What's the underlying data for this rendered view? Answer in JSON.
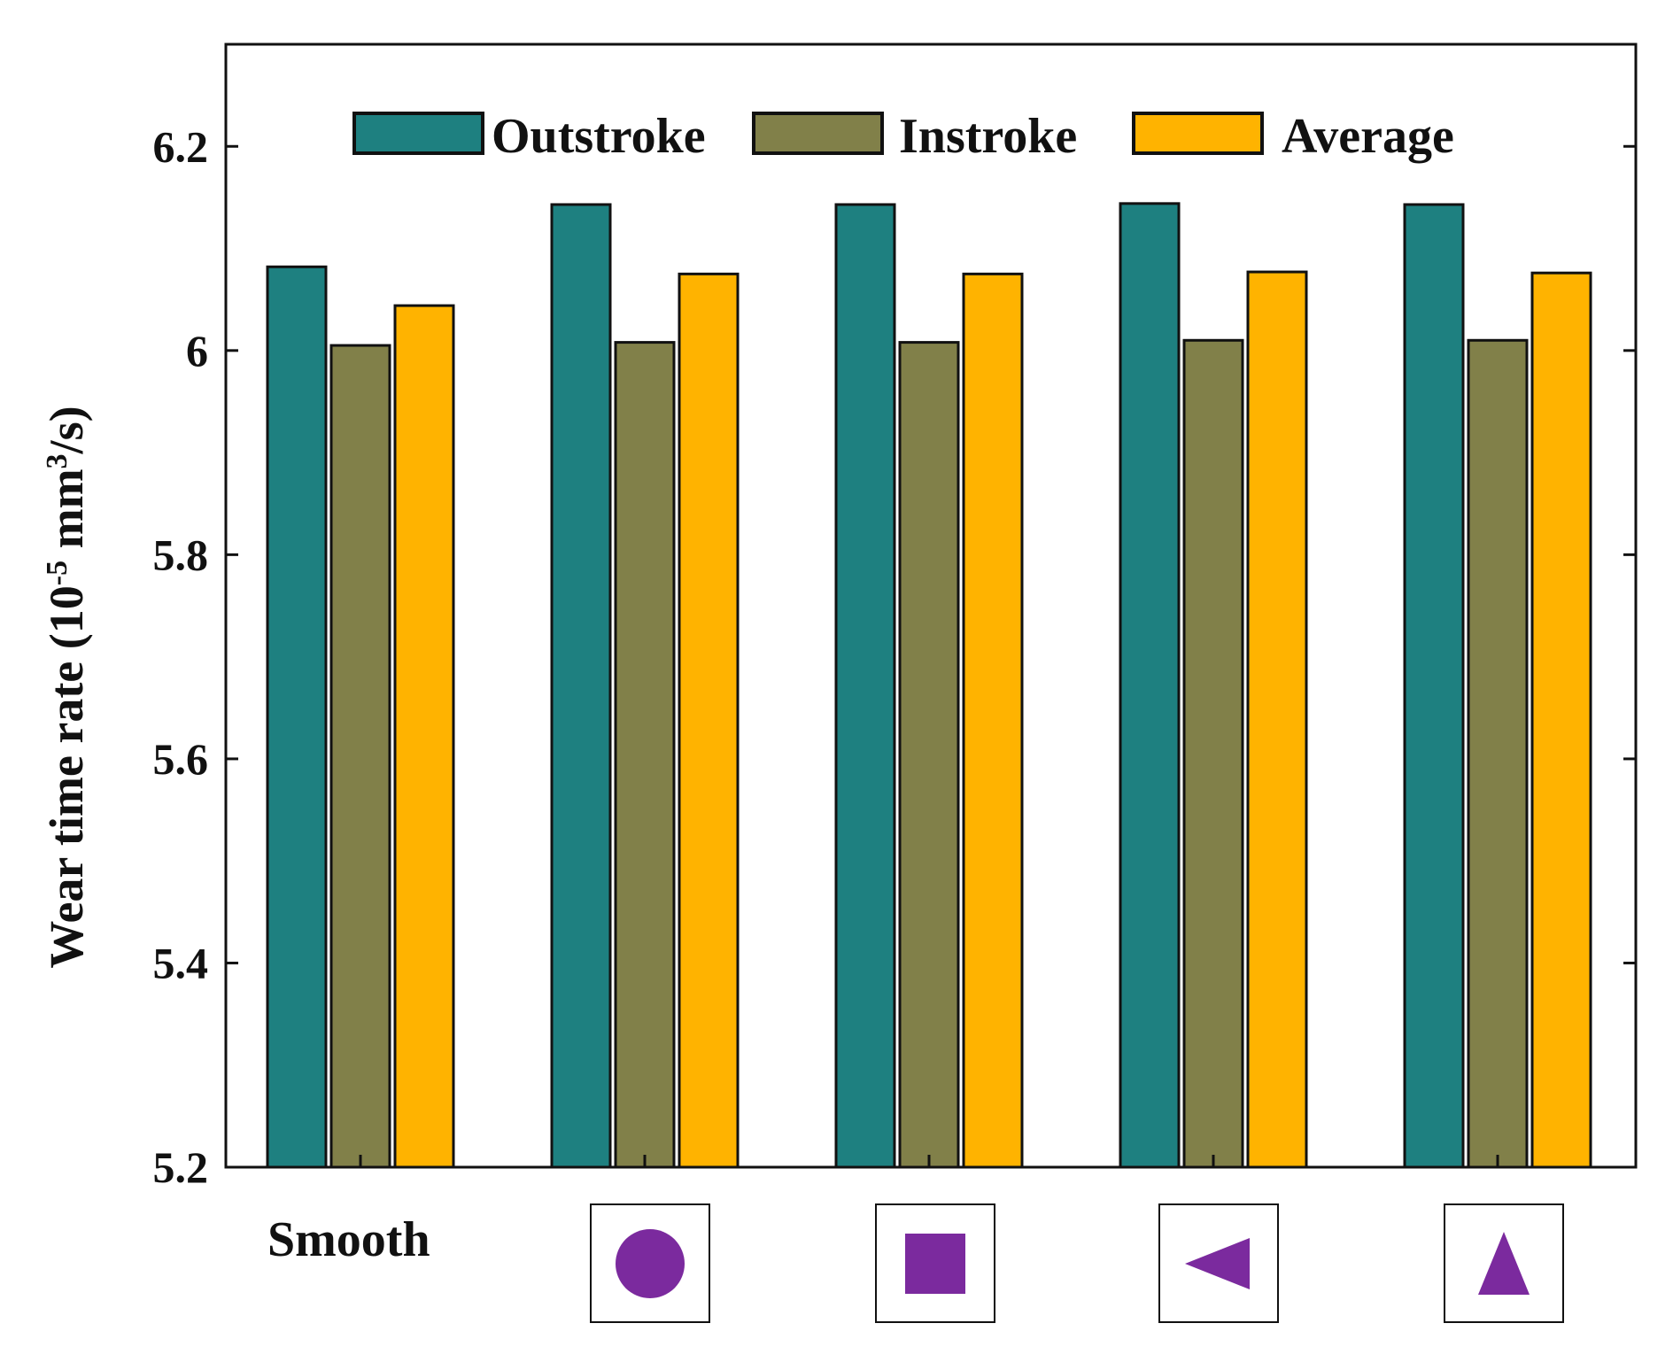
{
  "chart_data": {
    "type": "bar",
    "title": "",
    "xlabel": "",
    "ylabel_main": "Wear time rate (10",
    "ylabel_exp1": "-5",
    "ylabel_mid": " mm",
    "ylabel_exp2": "3",
    "ylabel_end": "/s)",
    "ylim": [
      5.2,
      6.3
    ],
    "yticks": [
      5.2,
      5.4,
      5.6,
      5.8,
      6,
      6.2
    ],
    "ytick_labels": [
      "5.2",
      "5.4",
      "5.6",
      "5.8",
      "6",
      "6.2"
    ],
    "categories": [
      "Smooth",
      "circle",
      "square",
      "triangle-left",
      "triangle-up"
    ],
    "category_text": "Smooth",
    "category_icons": [
      "",
      "circle-icon",
      "square-icon",
      "triangle-left-icon",
      "triangle-up-icon"
    ],
    "icon_color": "#7b2a9e",
    "legend_position": "top",
    "series": [
      {
        "name": "Outstroke",
        "color": "#1e8080",
        "values": [
          6.082,
          6.143,
          6.143,
          6.144,
          6.143
        ]
      },
      {
        "name": "Instroke",
        "color": "#818049",
        "values": [
          6.005,
          6.008,
          6.008,
          6.01,
          6.01
        ]
      },
      {
        "name": "Average",
        "color": "#ffb300",
        "values": [
          6.044,
          6.075,
          6.075,
          6.077,
          6.076
        ]
      }
    ]
  }
}
